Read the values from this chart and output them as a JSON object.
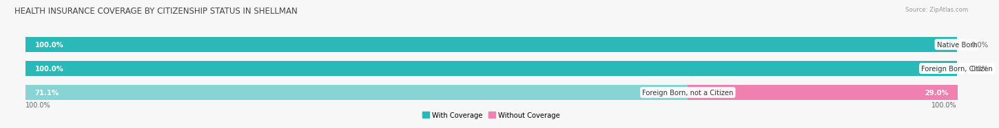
{
  "title": "HEALTH INSURANCE COVERAGE BY CITIZENSHIP STATUS IN SHELLMAN",
  "source": "Source: ZipAtlas.com",
  "categories": [
    "Native Born",
    "Foreign Born, Citizen",
    "Foreign Born, not a Citizen"
  ],
  "with_coverage": [
    100.0,
    100.0,
    71.1
  ],
  "without_coverage": [
    0.0,
    0.0,
    29.0
  ],
  "color_with": "#2ab8b8",
  "color_with_light": "#88d4d4",
  "color_without": "#f080b0",
  "color_without_light": "#f8c0d8",
  "bg_bar": "#ebebeb",
  "bg_fig": "#f7f7f7",
  "title_fontsize": 8.5,
  "label_fontsize": 7.2,
  "tick_fontsize": 7.0,
  "legend_fontsize": 7.2,
  "source_fontsize": 6.2,
  "left_label": "100.0%",
  "right_label": "100.0%"
}
